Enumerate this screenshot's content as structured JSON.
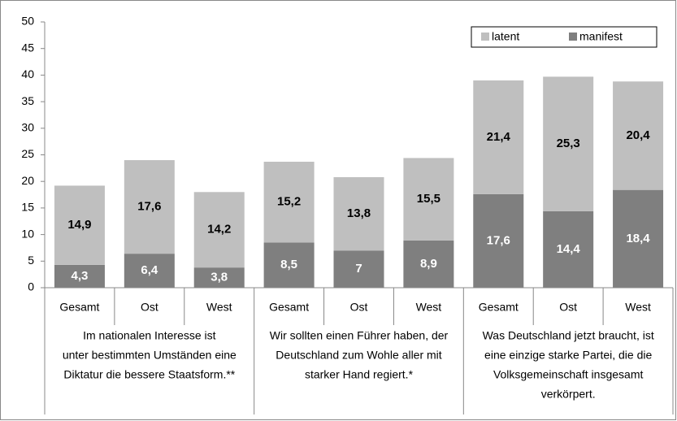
{
  "chart_data": {
    "type": "stacked_bar",
    "categories": [
      "Gesamt",
      "Ost",
      "West",
      "Gesamt",
      "Ost",
      "West",
      "Gesamt",
      "Ost",
      "West"
    ],
    "groups": [
      [
        "Im nationalen Interesse ist",
        "unter bestimmten Umständen eine",
        "Diktatur die bessere Staatsform.**"
      ],
      [
        "Wir sollten einen Führer haben, der",
        "Deutschland zum Wohle aller mit",
        "starker Hand regiert.*"
      ],
      [
        "Was Deutschland jetzt braucht, ist",
        "eine einzige starke Partei, die die",
        "Volksgemeinschaft insgesamt",
        "verkörpert."
      ]
    ],
    "series": [
      {
        "name": "manifest",
        "color": "#7f7f7f",
        "values": [
          4.3,
          6.4,
          3.8,
          8.5,
          7,
          8.9,
          17.6,
          14.4,
          18.4
        ],
        "value_labels": [
          "4,3",
          "6,4",
          "3,8",
          "8,5",
          "7",
          "8,9",
          "17,6",
          "14,4",
          "18,4"
        ]
      },
      {
        "name": "latent",
        "color": "#bfbfbf",
        "values": [
          14.9,
          17.6,
          14.2,
          15.2,
          13.8,
          15.5,
          21.4,
          25.3,
          20.4
        ],
        "value_labels": [
          "14,9",
          "17,6",
          "14,2",
          "15,2",
          "13,8",
          "15,5",
          "21,4",
          "25,3",
          "20,4"
        ]
      }
    ],
    "ylim": [
      0,
      50
    ],
    "yticks": [
      0,
      5,
      10,
      15,
      20,
      25,
      30,
      35,
      40,
      45,
      50
    ],
    "grid": false,
    "legend": "top-right"
  }
}
